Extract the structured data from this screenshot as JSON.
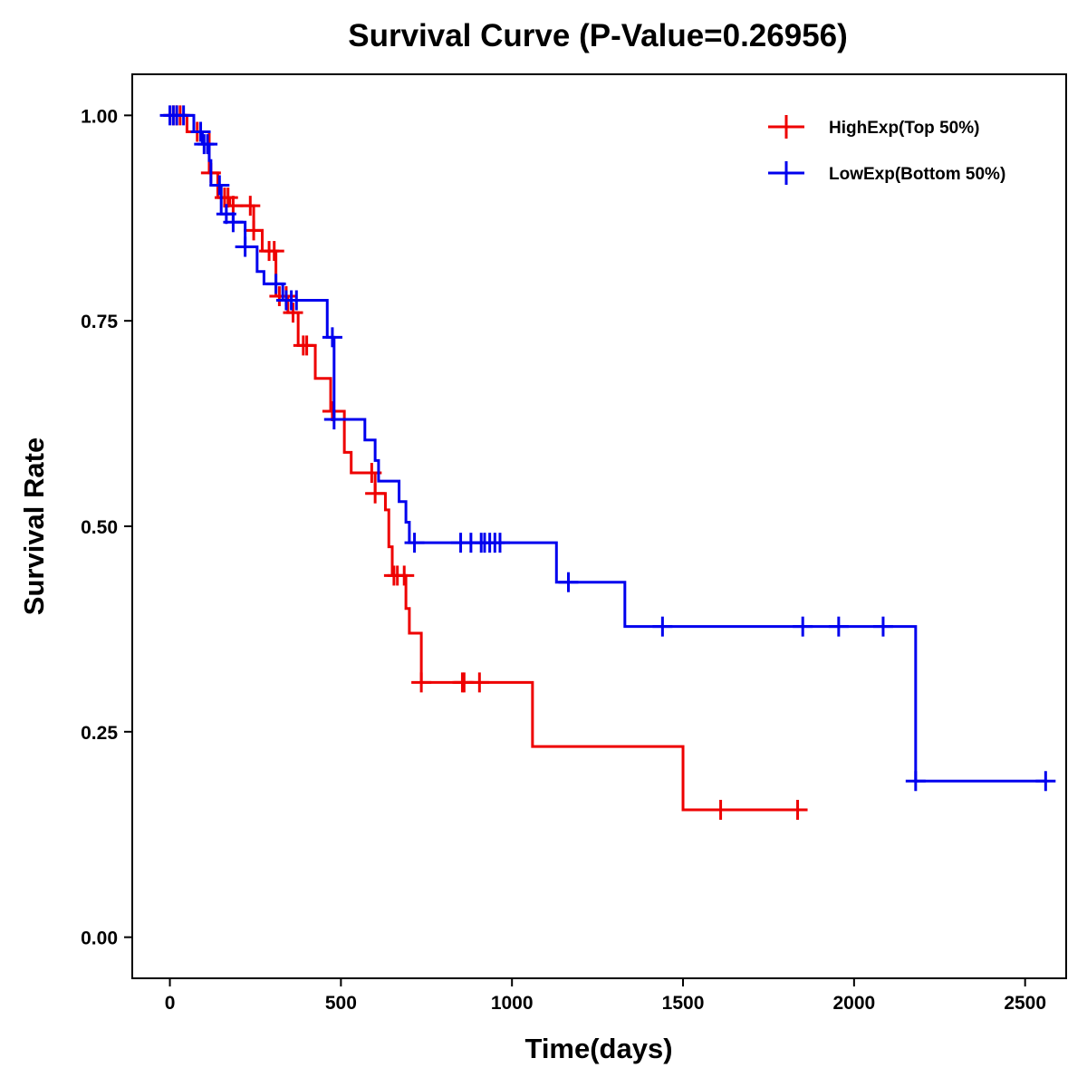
{
  "chart_data": {
    "type": "line",
    "subtype": "kaplan-meier",
    "title": "Survival Curve (P-Value=0.26956)",
    "xlabel": "Time(days)",
    "ylabel": "Survival Rate",
    "xlim": [
      -110,
      2620
    ],
    "ylim": [
      -0.05,
      1.05
    ],
    "xticks": [
      0,
      500,
      1000,
      1500,
      2000,
      2500
    ],
    "xtick_labels": [
      "0",
      "500",
      "1000",
      "1500",
      "2000",
      "2500"
    ],
    "yticks": [
      0,
      0.25,
      0.5,
      0.75,
      1.0
    ],
    "ytick_labels": [
      "0.00",
      "0.25",
      "0.50",
      "0.75",
      "1.00"
    ],
    "legend_position": "top-right",
    "series": [
      {
        "name": "HighExp(Top 50%)",
        "color": "#ee0000",
        "steps": [
          [
            0,
            1.0
          ],
          [
            50,
            0.98
          ],
          [
            115,
            0.93
          ],
          [
            140,
            0.9
          ],
          [
            175,
            0.89
          ],
          [
            245,
            0.86
          ],
          [
            270,
            0.835
          ],
          [
            310,
            0.78
          ],
          [
            345,
            0.76
          ],
          [
            375,
            0.72
          ],
          [
            425,
            0.68
          ],
          [
            470,
            0.64
          ],
          [
            510,
            0.59
          ],
          [
            530,
            0.565
          ],
          [
            600,
            0.54
          ],
          [
            630,
            0.52
          ],
          [
            640,
            0.475
          ],
          [
            650,
            0.44
          ],
          [
            690,
            0.4
          ],
          [
            700,
            0.37
          ],
          [
            735,
            0.31
          ],
          [
            1060,
            0.232
          ],
          [
            1500,
            0.155
          ]
        ],
        "end_time": 1850,
        "censor_times": [
          10,
          20,
          30,
          80,
          120,
          160,
          170,
          185,
          235,
          245,
          290,
          305,
          320,
          340,
          360,
          390,
          400,
          475,
          590,
          600,
          655,
          665,
          685,
          735,
          855,
          860,
          905,
          1610,
          1835
        ]
      },
      {
        "name": "LowExp(Bottom 50%)",
        "color": "#0000ee",
        "steps": [
          [
            0,
            1.0
          ],
          [
            70,
            0.98
          ],
          [
            95,
            0.965
          ],
          [
            115,
            0.945
          ],
          [
            120,
            0.915
          ],
          [
            150,
            0.88
          ],
          [
            185,
            0.87
          ],
          [
            220,
            0.84
          ],
          [
            255,
            0.81
          ],
          [
            275,
            0.795
          ],
          [
            330,
            0.775
          ],
          [
            460,
            0.73
          ],
          [
            480,
            0.63
          ],
          [
            570,
            0.605
          ],
          [
            600,
            0.58
          ],
          [
            610,
            0.555
          ],
          [
            670,
            0.53
          ],
          [
            690,
            0.505
          ],
          [
            700,
            0.48
          ],
          [
            1130,
            0.432
          ],
          [
            1330,
            0.378
          ],
          [
            2180,
            0.19
          ]
        ],
        "end_time": 2560,
        "censor_times": [
          0,
          10,
          20,
          40,
          90,
          100,
          110,
          145,
          165,
          185,
          220,
          310,
          340,
          355,
          370,
          475,
          480,
          715,
          850,
          880,
          910,
          920,
          935,
          950,
          965,
          1165,
          1440,
          1850,
          1955,
          2085,
          2180,
          2560
        ]
      }
    ]
  }
}
